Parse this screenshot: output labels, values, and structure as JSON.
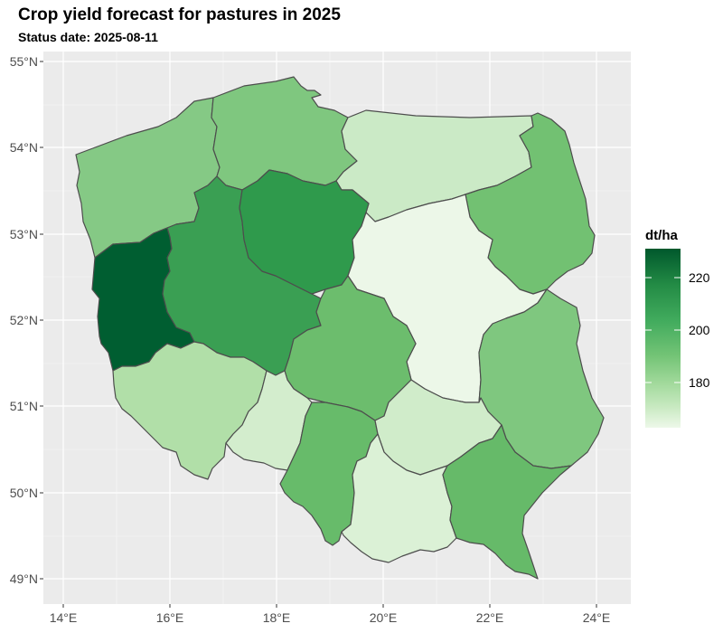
{
  "title": "Crop yield forecast for pastures in 2025",
  "subtitle": "Status date: 2025-08-11",
  "axes": {
    "x_ticks": [
      "14°E",
      "16°E",
      "18°E",
      "20°E",
      "22°E",
      "24°E"
    ],
    "y_ticks": [
      "55°N",
      "54°N",
      "53°N",
      "52°N",
      "51°N",
      "50°N",
      "49°N"
    ]
  },
  "legend": {
    "title": "dt/ha",
    "ticks": [
      "220",
      "200",
      "180"
    ],
    "colors": [
      "#00582c",
      "#238b45",
      "#41ab5d",
      "#74c476",
      "#a1d99b",
      "#c7e9c0",
      "#edf8e9"
    ]
  },
  "regions": [
    {
      "name": "zachodniopomorskie",
      "fill": "#85c985"
    },
    {
      "name": "pomorskie",
      "fill": "#7fc77f"
    },
    {
      "name": "warminsko-mazurskie",
      "fill": "#cbeac6"
    },
    {
      "name": "podlaskie",
      "fill": "#72c172"
    },
    {
      "name": "lubuskie",
      "fill": "#005e31"
    },
    {
      "name": "wielkopolskie",
      "fill": "#3a9f53"
    },
    {
      "name": "kujawsko-pomorskie",
      "fill": "#2f9a4c"
    },
    {
      "name": "mazowieckie",
      "fill": "#ecf7e8"
    },
    {
      "name": "lodzkie",
      "fill": "#6cbd6d"
    },
    {
      "name": "lubelskie",
      "fill": "#7fc77f"
    },
    {
      "name": "dolnoslaskie",
      "fill": "#b1dfa8"
    },
    {
      "name": "opolskie",
      "fill": "#d3edcd"
    },
    {
      "name": "slaskie",
      "fill": "#67bb6a"
    },
    {
      "name": "swietokrzyskie",
      "fill": "#d0ecca"
    },
    {
      "name": "malopolskie",
      "fill": "#dbf1d6"
    },
    {
      "name": "podkarpackie",
      "fill": "#66ba69"
    }
  ]
}
